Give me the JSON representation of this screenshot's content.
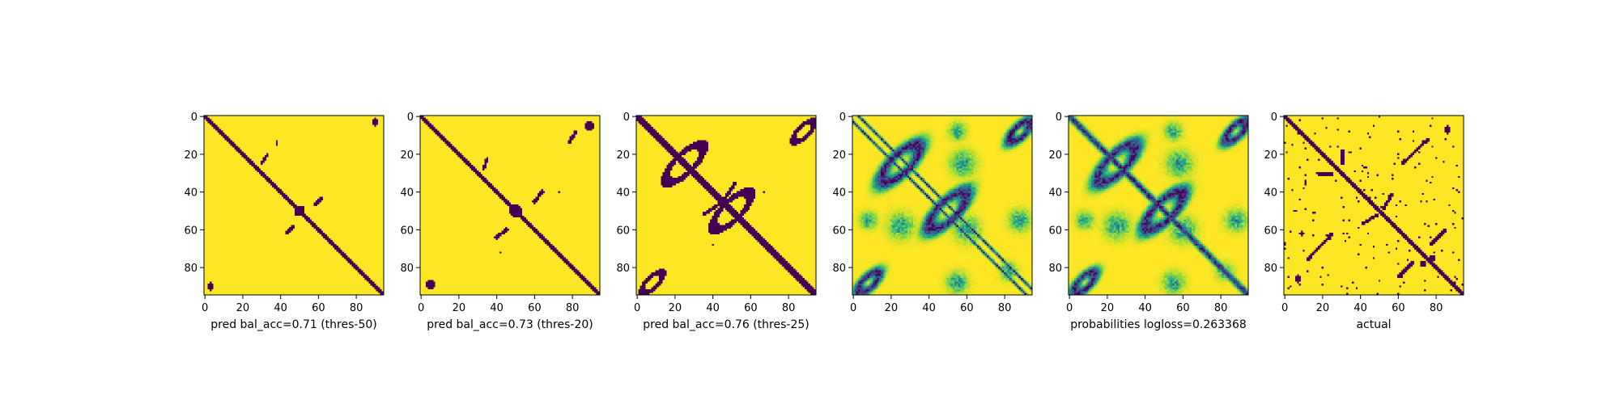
{
  "figure": {
    "colors": {
      "background": "#ffffff",
      "axis": "#000000",
      "low": "#440154",
      "mid": "#21918c",
      "high": "#fde725"
    }
  },
  "chart_data": [
    {
      "type": "heatmap",
      "matrix_size": 95,
      "colormap": "viridis",
      "xticks": [
        0,
        20,
        40,
        60,
        80
      ],
      "yticks": [
        0,
        20,
        40,
        60,
        80
      ],
      "xlabel": "pred bal_acc=0.71 (thres-50)",
      "values": "binary",
      "features": {
        "diag_width": 2.2,
        "blobs": [
          [
            50,
            50,
            3.5,
            3.5
          ],
          [
            90,
            3,
            2.5,
            2
          ],
          [
            3,
            90,
            2.5,
            2
          ],
          [
            37,
            36,
            1,
            1
          ],
          [
            36,
            37,
            1,
            1
          ],
          [
            14,
            38,
            1.3,
            1
          ]
        ],
        "segments": [
          [
            47,
            58,
            43,
            62,
            1.1
          ],
          [
            58,
            47,
            62,
            43,
            1.1
          ],
          [
            20,
            33,
            25,
            30,
            0.9
          ]
        ]
      }
    },
    {
      "type": "heatmap",
      "matrix_size": 95,
      "colormap": "viridis",
      "xticks": [
        0,
        20,
        40,
        60,
        80
      ],
      "yticks": [
        0,
        20,
        40,
        60,
        80
      ],
      "xlabel": "pred bal_acc=0.73 (thres-20)",
      "values": "binary",
      "features": {
        "diag_width": 2.6,
        "blobs": [
          [
            50,
            50,
            4,
            4
          ],
          [
            89,
            5,
            3,
            3
          ],
          [
            5,
            89,
            3,
            3
          ],
          [
            37,
            38,
            1.2,
            1.2
          ],
          [
            40,
            73,
            1,
            1
          ],
          [
            72,
            42,
            1,
            1
          ]
        ],
        "segments": [
          [
            45,
            60,
            40,
            64,
            1.3
          ],
          [
            60,
            45,
            64,
            40,
            1.3
          ],
          [
            22,
            35,
            28,
            33,
            1.1
          ],
          [
            8,
            82,
            14,
            78,
            1
          ]
        ]
      }
    },
    {
      "type": "heatmap",
      "matrix_size": 95,
      "colormap": "viridis",
      "xticks": [
        0,
        20,
        40,
        60,
        80
      ],
      "yticks": [
        0,
        20,
        40,
        60,
        80
      ],
      "xlabel": "pred bal_acc=0.76 (thres-25)",
      "values": "binary",
      "features": {
        "diag_width": 3,
        "rings": [
          [
            25,
            25,
            13,
            5,
            1.6
          ],
          [
            50,
            50,
            13,
            5,
            1.6
          ],
          [
            88,
            8,
            7,
            3,
            1.3
          ],
          [
            8,
            88,
            7,
            3,
            1.3
          ]
        ],
        "blobs": [
          [
            40,
            67,
            1.2,
            1.2
          ],
          [
            68,
            40,
            1.2,
            1.2
          ]
        ],
        "segments": [
          [
            35,
            52,
            44,
            46,
            1.2
          ],
          [
            52,
            35,
            46,
            44,
            1.2
          ]
        ]
      }
    },
    {
      "type": "heatmap",
      "matrix_size": 95,
      "colormap": "viridis",
      "xticks": [
        0,
        20,
        40,
        60,
        80
      ],
      "yticks": [
        0,
        20,
        40,
        60,
        80
      ],
      "xlabel": "",
      "values": "continuous",
      "features": {
        "diag_width": 0,
        "side_lines": [
          [
            3,
            0.9
          ]
        ],
        "rings": [
          [
            25,
            25,
            13,
            5,
            2.2
          ],
          [
            50,
            50,
            13,
            5,
            2.2
          ],
          [
            88,
            8,
            7,
            3,
            1.8
          ],
          [
            8,
            88,
            7,
            3,
            1.8
          ]
        ],
        "clouds": [
          [
            25,
            58,
            6
          ],
          [
            58,
            25,
            6
          ],
          [
            55,
            88,
            5
          ],
          [
            88,
            55,
            5
          ],
          [
            60,
            60,
            6
          ],
          [
            8,
            55,
            4
          ],
          [
            55,
            8,
            4
          ],
          [
            82,
            82,
            4
          ]
        ]
      }
    },
    {
      "type": "heatmap",
      "matrix_size": 95,
      "colormap": "viridis",
      "xticks": [
        0,
        20,
        40,
        60,
        80
      ],
      "yticks": [
        0,
        20,
        40,
        60,
        80
      ],
      "xlabel": "probabilities logloss=0.263368",
      "values": "continuous",
      "features": {
        "diag_width": 2.6,
        "rings": [
          [
            25,
            25,
            13,
            5,
            2.2
          ],
          [
            50,
            50,
            13,
            5,
            2.2
          ],
          [
            88,
            8,
            7,
            3,
            1.8
          ],
          [
            8,
            88,
            7,
            3,
            1.8
          ]
        ],
        "clouds": [
          [
            25,
            58,
            6
          ],
          [
            58,
            25,
            6
          ],
          [
            55,
            88,
            5
          ],
          [
            88,
            55,
            5
          ],
          [
            60,
            60,
            6
          ],
          [
            8,
            55,
            4
          ],
          [
            55,
            8,
            4
          ],
          [
            82,
            82,
            4
          ]
        ]
      }
    },
    {
      "type": "heatmap",
      "matrix_size": 95,
      "colormap": "viridis",
      "xticks": [
        0,
        20,
        40,
        60,
        80
      ],
      "yticks": [
        0,
        20,
        40,
        60,
        80
      ],
      "xlabel": "actual",
      "values": "binary",
      "features": {
        "diag_width": 2.4,
        "seed": 7,
        "speckle": 0.02,
        "blobs": [
          [
            86,
            7,
            2.5,
            2
          ],
          [
            7,
            86,
            2.5,
            2
          ],
          [
            35,
            11,
            2,
            1.2
          ],
          [
            62,
            9,
            1.5,
            2
          ],
          [
            78,
            73,
            2,
            2
          ],
          [
            75,
            78,
            2,
            2
          ],
          [
            87,
            50,
            1,
            1
          ]
        ],
        "segments": [
          [
            18,
            31,
            25,
            30,
            1.2
          ],
          [
            31,
            18,
            30,
            25,
            1.2
          ],
          [
            62,
            25,
            76,
            12,
            1
          ],
          [
            25,
            62,
            12,
            76,
            1
          ],
          [
            49,
            52,
            41,
            57,
            1.1
          ],
          [
            52,
            49,
            57,
            41,
            1.1
          ],
          [
            68,
            77,
            60,
            85,
            1
          ],
          [
            77,
            68,
            85,
            60,
            1
          ]
        ]
      }
    }
  ]
}
